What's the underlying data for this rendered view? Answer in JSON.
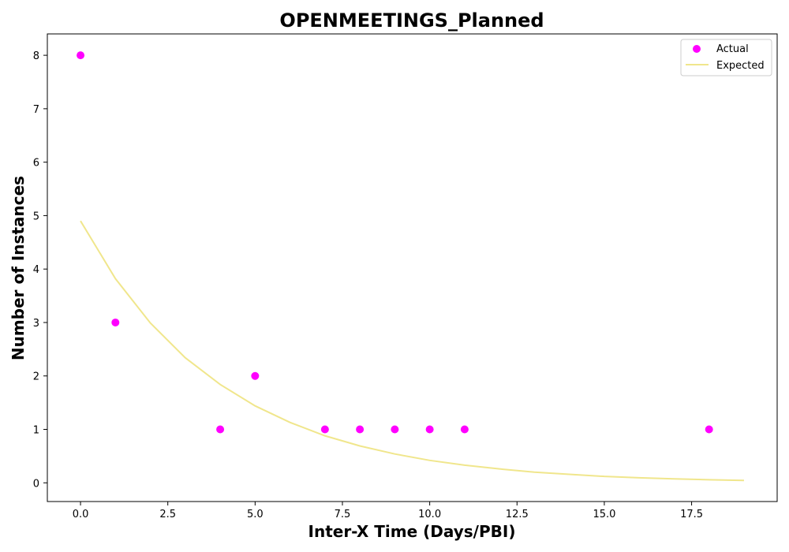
{
  "chart_data": {
    "type": "scatter",
    "title": "OPENMEETINGS_Planned",
    "xlabel": "Inter-X Time (Days/PBI)",
    "ylabel": "Number of Instances",
    "xlim": [
      -0.95,
      19.95
    ],
    "ylim": [
      -0.35,
      8.4
    ],
    "xticks": [
      0.0,
      2.5,
      5.0,
      7.5,
      10.0,
      12.5,
      15.0,
      17.5
    ],
    "xtick_labels": [
      "0.0",
      "2.5",
      "5.0",
      "7.5",
      "10.0",
      "12.5",
      "15.0",
      "17.5"
    ],
    "yticks": [
      0,
      1,
      2,
      3,
      4,
      5,
      6,
      7,
      8
    ],
    "ytick_labels": [
      "0",
      "1",
      "2",
      "3",
      "4",
      "5",
      "6",
      "7",
      "8"
    ],
    "grid": false,
    "legend_position": "top-right",
    "series": [
      {
        "name": "Actual",
        "kind": "scatter",
        "color": "#ff00ff",
        "x": [
          0,
          1,
          4,
          5,
          7,
          8,
          9,
          10,
          11,
          18
        ],
        "y": [
          8,
          3,
          1,
          2,
          1,
          1,
          1,
          1,
          1,
          1
        ]
      },
      {
        "name": "Expected",
        "kind": "line",
        "color": "#f0e68c",
        "x": [
          0,
          1,
          2,
          3,
          4,
          5,
          6,
          7,
          8,
          9,
          10,
          11,
          12,
          13,
          14,
          15,
          16,
          17,
          18,
          19
        ],
        "y": [
          4.9,
          3.82,
          2.99,
          2.34,
          1.84,
          1.44,
          1.13,
          0.88,
          0.69,
          0.54,
          0.42,
          0.33,
          0.26,
          0.2,
          0.16,
          0.12,
          0.095,
          0.075,
          0.058,
          0.045
        ]
      }
    ]
  }
}
